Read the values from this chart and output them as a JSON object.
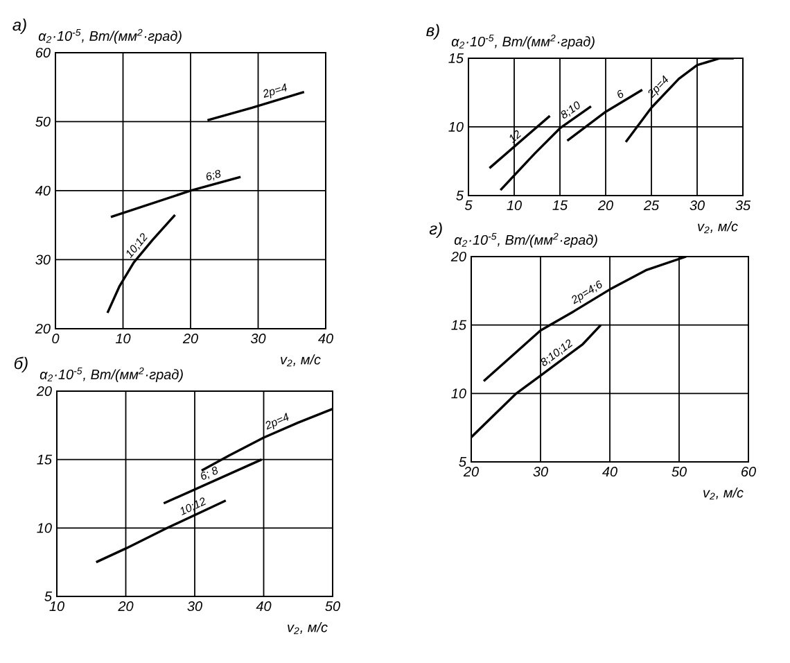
{
  "chart_data": [
    {
      "type": "line",
      "title": "а)",
      "ylabel": "α$_{2}$·10$^{-5}$, Вт/(мм$^{2}$·град)",
      "xlabel": "v$_{2}$, м/с",
      "xlim": [
        0,
        40
      ],
      "ylim": [
        20,
        60
      ],
      "xticks": [
        0,
        10,
        20,
        30,
        40
      ],
      "yticks": [
        20,
        30,
        40,
        50,
        60
      ],
      "grid": true,
      "legend": false,
      "series": [
        {
          "name": "2p=4",
          "color": "#000000",
          "x": [
            22.5,
            29,
            36.8
          ],
          "values": [
            50.2,
            52,
            54.3
          ]
        },
        {
          "name": "6;8",
          "color": "#000000",
          "x": [
            8.2,
            20,
            27.4
          ],
          "values": [
            36.2,
            40,
            42
          ]
        },
        {
          "name": "10;12",
          "color": "#000000",
          "x": [
            7.7,
            9.5,
            11.6,
            14.4,
            17.7
          ],
          "values": [
            22.3,
            26.2,
            29.6,
            32.9,
            36.5
          ]
        }
      ]
    },
    {
      "type": "line",
      "title": "б)",
      "ylabel": "α$_{2}$·10$^{-5}$, Вт/(мм$^{2}$·град)",
      "xlabel": "v$_{2}$, м/с",
      "xlim": [
        10,
        50
      ],
      "ylim": [
        5,
        20
      ],
      "xticks": [
        10,
        20,
        30,
        40,
        50
      ],
      "yticks": [
        5,
        10,
        15,
        20
      ],
      "grid": true,
      "legend": false,
      "series": [
        {
          "name": "2p=4",
          "color": "#000000",
          "x": [
            31,
            35,
            40,
            45,
            50
          ],
          "values": [
            14.2,
            15.3,
            16.6,
            17.7,
            18.7
          ]
        },
        {
          "name": "6; 8",
          "color": "#000000",
          "x": [
            25.5,
            39.7
          ],
          "values": [
            11.8,
            15.0
          ]
        },
        {
          "name": "10;12",
          "color": "#000000",
          "x": [
            15.7,
            20,
            26,
            34.5
          ],
          "values": [
            7.5,
            8.5,
            10,
            12.0
          ]
        }
      ]
    },
    {
      "type": "line",
      "title": "в)",
      "ylabel": "α$_{2}$·10$^{-5}$, Вт/(мм$^{2}$·град)",
      "xlabel": "v$_{2}$, м/с",
      "xlim": [
        5,
        35
      ],
      "ylim": [
        5,
        15
      ],
      "xticks": [
        5,
        10,
        15,
        20,
        25,
        30,
        35
      ],
      "yticks": [
        5,
        10,
        15
      ],
      "grid": true,
      "legend": false,
      "series": [
        {
          "name": "12",
          "color": "#000000",
          "x": [
            7.3,
            13.9
          ],
          "values": [
            7.0,
            10.8
          ]
        },
        {
          "name": "8;10",
          "color": "#000000",
          "x": [
            8.5,
            12.3,
            15,
            18.4
          ],
          "values": [
            5.4,
            8.1,
            9.9,
            11.5
          ]
        },
        {
          "name": "6",
          "color": "#000000",
          "x": [
            15.8,
            20,
            24.0
          ],
          "values": [
            9.0,
            11.1,
            12.7
          ]
        },
        {
          "name": "2p=4",
          "color": "#000000",
          "x": [
            22.2,
            25,
            28,
            30,
            32.5,
            34
          ],
          "values": [
            8.9,
            11.4,
            13.5,
            14.5,
            15,
            15
          ]
        }
      ]
    },
    {
      "type": "line",
      "title": "г)",
      "ylabel": "α$_{2}$·10$^{-5}$, Вт/(мм$^{2}$·град)",
      "xlabel": "v$_{2}$, м/с",
      "xlim": [
        20,
        60
      ],
      "ylim": [
        5,
        20
      ],
      "xticks": [
        20,
        30,
        40,
        50,
        60
      ],
      "yticks": [
        5,
        10,
        15,
        20
      ],
      "grid": true,
      "legend": false,
      "series": [
        {
          "name": "2p=4;6",
          "color": "#000000",
          "x": [
            21.8,
            30,
            34.8,
            40,
            45.2,
            51
          ],
          "values": [
            10.9,
            14.6,
            16.0,
            17.6,
            19.0,
            20
          ]
        },
        {
          "name": "8;10;12",
          "color": "#000000",
          "x": [
            20,
            26.5,
            30,
            36.1,
            38.7
          ],
          "values": [
            6.8,
            10,
            11.3,
            13.6,
            15.0
          ]
        }
      ]
    }
  ]
}
